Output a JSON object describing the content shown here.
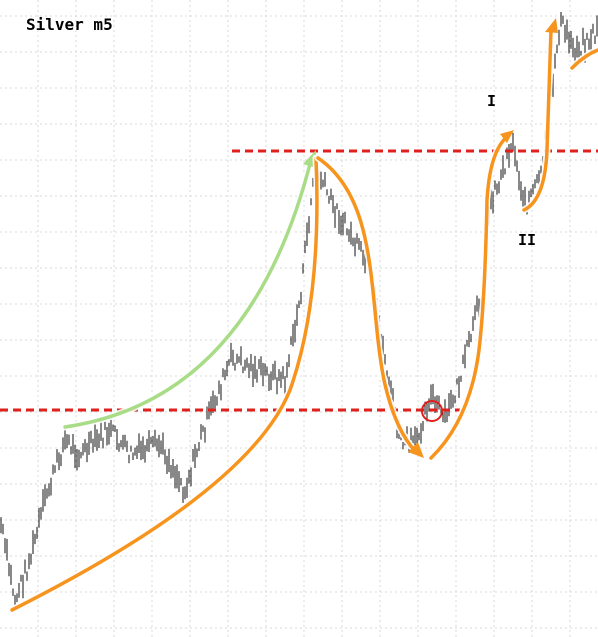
{
  "chart_data": {
    "type": "ohlc",
    "title": "Silver m5",
    "annotations": [
      {
        "text": "I"
      },
      {
        "text": "II"
      }
    ]
  }
}
